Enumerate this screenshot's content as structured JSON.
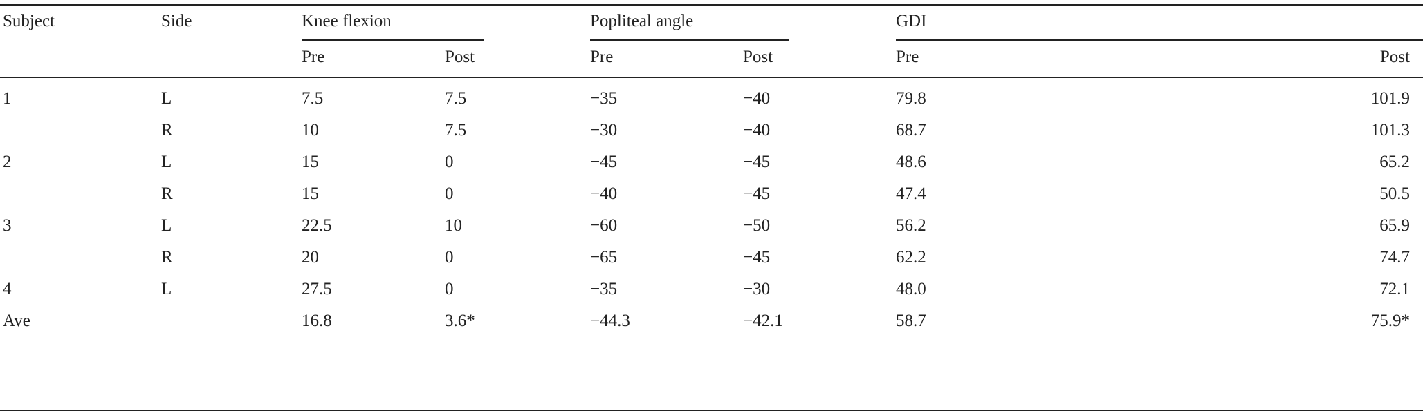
{
  "table": {
    "header": {
      "subject": "Subject",
      "side": "Side",
      "knee_flexion": "Knee flexion",
      "popliteal_angle": "Popliteal angle",
      "gdi": "GDI",
      "pre": "Pre",
      "post": "Post"
    },
    "rows": [
      {
        "subject": "1",
        "side": "L",
        "kf_pre": "7.5",
        "kf_post": "7.5",
        "pa_pre": "−35",
        "pa_post": "−40",
        "gdi_pre": "79.8",
        "gdi_post": "101.9"
      },
      {
        "subject": "",
        "side": "R",
        "kf_pre": "10",
        "kf_post": "7.5",
        "pa_pre": "−30",
        "pa_post": "−40",
        "gdi_pre": "68.7",
        "gdi_post": "101.3"
      },
      {
        "subject": "2",
        "side": "L",
        "kf_pre": "15",
        "kf_post": "0",
        "pa_pre": "−45",
        "pa_post": "−45",
        "gdi_pre": "48.6",
        "gdi_post": "65.2"
      },
      {
        "subject": "",
        "side": "R",
        "kf_pre": "15",
        "kf_post": "0",
        "pa_pre": "−40",
        "pa_post": "−45",
        "gdi_pre": "47.4",
        "gdi_post": "50.5"
      },
      {
        "subject": "3",
        "side": "L",
        "kf_pre": "22.5",
        "kf_post": "10",
        "pa_pre": "−60",
        "pa_post": "−50",
        "gdi_pre": "56.2",
        "gdi_post": "65.9"
      },
      {
        "subject": "",
        "side": "R",
        "kf_pre": "20",
        "kf_post": "0",
        "pa_pre": "−65",
        "pa_post": "−45",
        "gdi_pre": "62.2",
        "gdi_post": "74.7"
      },
      {
        "subject": "4",
        "side": "L",
        "kf_pre": "27.5",
        "kf_post": "0",
        "pa_pre": "−35",
        "pa_post": "−30",
        "gdi_pre": "48.0",
        "gdi_post": "72.1"
      },
      {
        "subject": "Ave",
        "side": "",
        "kf_pre": "16.8",
        "kf_post": "3.6*",
        "pa_pre": "−44.3",
        "pa_post": "−42.1",
        "gdi_pre": "58.7",
        "gdi_post": "75.9*"
      }
    ]
  }
}
